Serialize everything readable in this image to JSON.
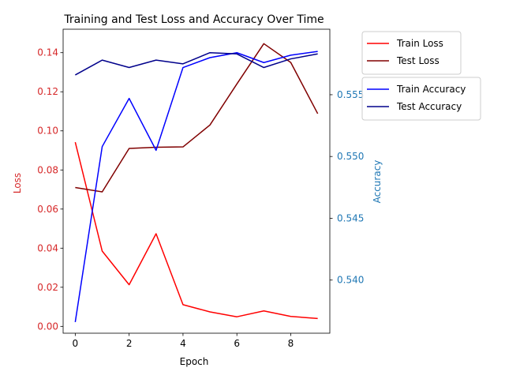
{
  "chart_data": {
    "type": "line",
    "title": "Training and Test Loss and Accuracy Over Time",
    "xlabel": "Epoch",
    "ylabel_left": "Loss",
    "ylabel_right": "Accuracy",
    "x": [
      0,
      1,
      2,
      3,
      4,
      5,
      6,
      7,
      8,
      9
    ],
    "x_ticks": [
      0,
      2,
      4,
      6,
      8
    ],
    "xlim": [
      -0.45,
      9.45
    ],
    "left_axis": {
      "ylim": [
        -0.0035,
        0.152
      ],
      "ticks": [
        0.0,
        0.02,
        0.04,
        0.06,
        0.08,
        0.1,
        0.12,
        0.14
      ],
      "tick_labels": [
        "0.00",
        "0.02",
        "0.04",
        "0.06",
        "0.08",
        "0.10",
        "0.12",
        "0.14"
      ],
      "color": "#d62728"
    },
    "right_axis": {
      "ylim": [
        0.5357,
        0.5603
      ],
      "ticks": [
        0.54,
        0.545,
        0.55,
        0.555
      ],
      "tick_labels": [
        "0.540",
        "0.545",
        "0.550",
        "0.555"
      ],
      "color": "#1f77b4"
    },
    "series": [
      {
        "name": "Train Loss",
        "axis": "left",
        "color": "#ff0000",
        "values": [
          0.0942,
          0.0385,
          0.0213,
          0.0474,
          0.0111,
          0.0074,
          0.0049,
          0.0079,
          0.0051,
          0.004
        ]
      },
      {
        "name": "Test Loss",
        "axis": "left",
        "color": "#800000",
        "values": [
          0.071,
          0.0688,
          0.091,
          0.0916,
          0.0918,
          0.103,
          0.124,
          0.1446,
          0.135,
          0.1088
        ]
      },
      {
        "name": "Train Accuracy",
        "axis": "right",
        "color": "#0000ff",
        "values": [
          0.5366,
          0.5508,
          0.5547,
          0.5505,
          0.5572,
          0.558,
          0.5584,
          0.5576,
          0.5582,
          0.5585
        ]
      },
      {
        "name": "Test Accuracy",
        "axis": "right",
        "color": "#00008b",
        "values": [
          0.5566,
          0.5578,
          0.5572,
          0.5578,
          0.5575,
          0.5584,
          0.5583,
          0.5572,
          0.5579,
          0.5583
        ]
      }
    ],
    "legends": [
      {
        "placement": "upper-right-outside",
        "entries": [
          "Train Loss",
          "Test Loss"
        ]
      },
      {
        "placement": "right-outside",
        "entries": [
          "Train Accuracy",
          "Test Accuracy"
        ]
      }
    ],
    "grid": false
  }
}
